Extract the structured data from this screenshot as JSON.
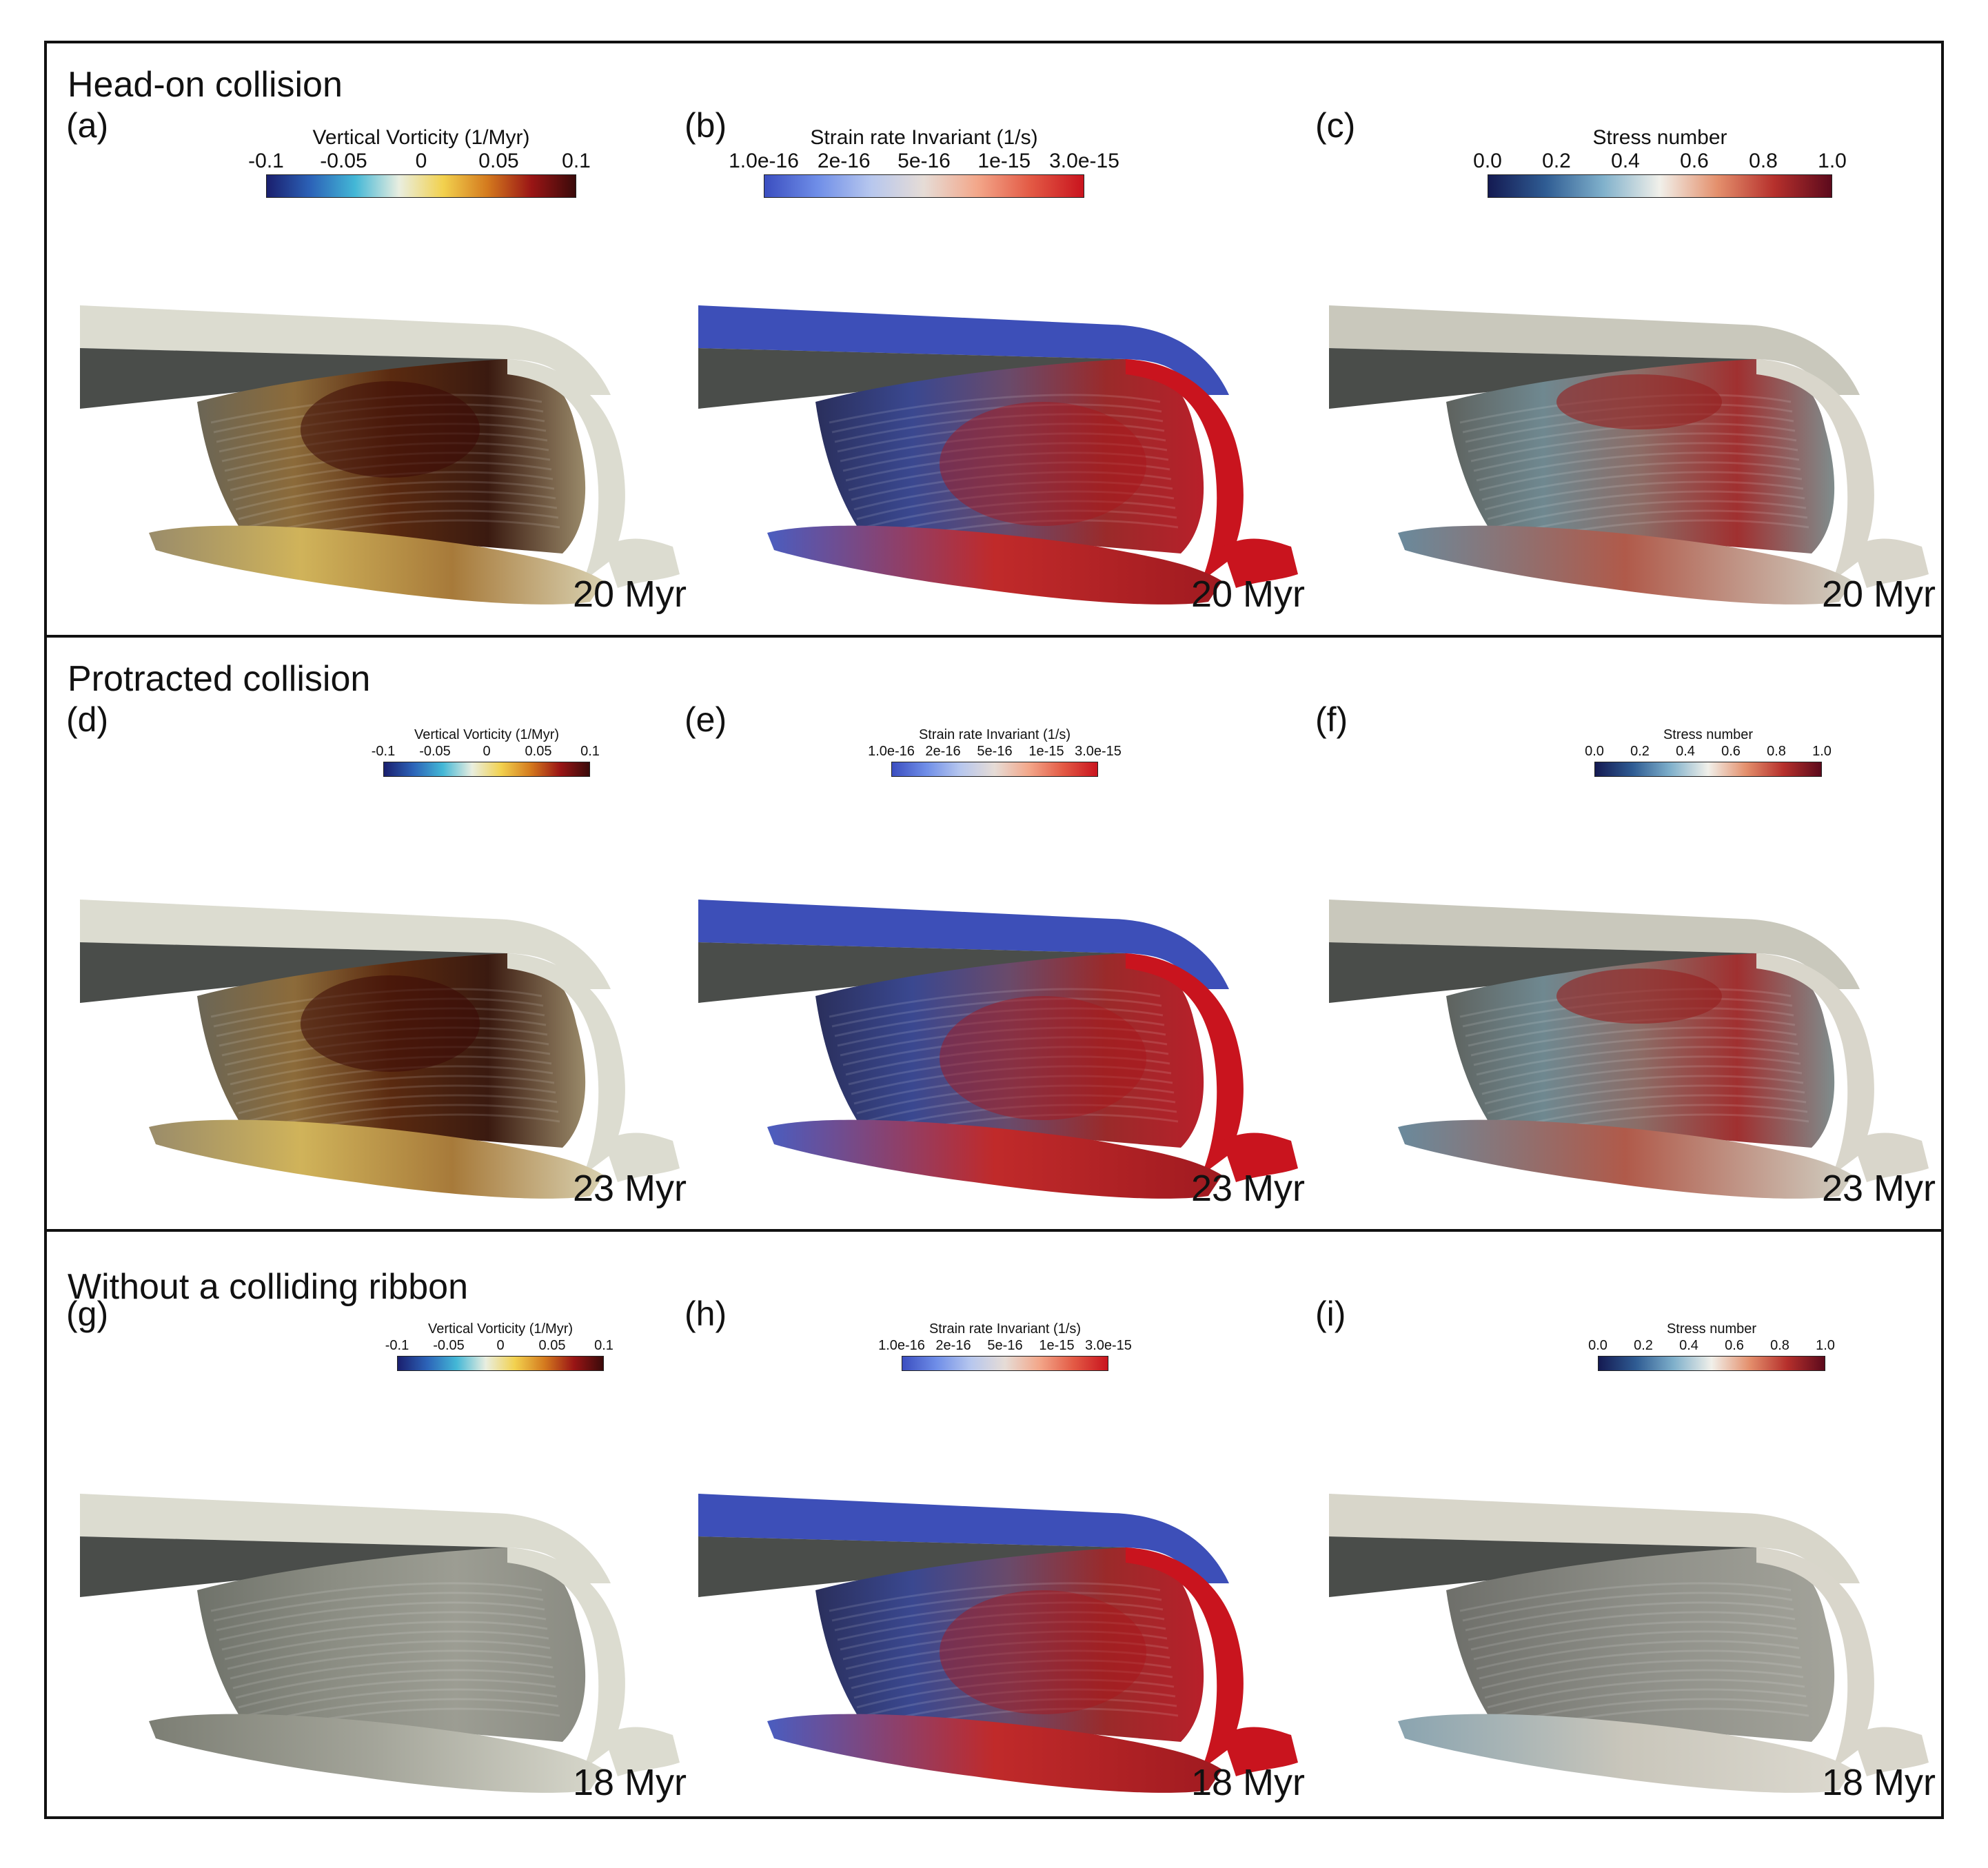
{
  "rows": [
    {
      "title": "Head-on collision",
      "panels": [
        {
          "label": "(a)",
          "time": "20 Myr",
          "cbar": {
            "title": "Vertical Vorticity (1/Myr)",
            "ticks": [
              "-0.1",
              "-0.05",
              "0",
              "0.05",
              "0.1"
            ],
            "scheme": "vorticity"
          },
          "field": "vorticity"
        },
        {
          "label": "(b)",
          "time": "20 Myr",
          "cbar": {
            "title": "Strain rate Invariant (1/s)",
            "ticks": [
              "1.0e-16",
              "2e-16",
              "5e-16",
              "1e-15",
              "3.0e-15"
            ],
            "scheme": "strain"
          },
          "field": "strain"
        },
        {
          "label": "(c)",
          "time": "20 Myr",
          "cbar": {
            "title": "Stress number",
            "ticks": [
              "0.0",
              "0.2",
              "0.4",
              "0.6",
              "0.8",
              "1.0"
            ],
            "scheme": "stress"
          },
          "field": "stress"
        }
      ]
    },
    {
      "title": "Protracted collision",
      "panels": [
        {
          "label": "(d)",
          "time": "23 Myr",
          "cbar": {
            "title": "Vertical Vorticity (1/Myr)",
            "ticks": [
              "-0.1",
              "-0.05",
              "0",
              "0.05",
              "0.1"
            ],
            "scheme": "vorticity"
          },
          "field": "vorticity"
        },
        {
          "label": "(e)",
          "time": "23 Myr",
          "cbar": {
            "title": "Strain rate Invariant (1/s)",
            "ticks": [
              "1.0e-16",
              "2e-16",
              "5e-16",
              "1e-15",
              "3.0e-15"
            ],
            "scheme": "strain"
          },
          "field": "strain"
        },
        {
          "label": "(f)",
          "time": "23 Myr",
          "cbar": {
            "title": "Stress number",
            "ticks": [
              "0.0",
              "0.2",
              "0.4",
              "0.6",
              "0.8",
              "1.0"
            ],
            "scheme": "stress"
          },
          "field": "stress"
        }
      ]
    },
    {
      "title": "Without a colliding ribbon",
      "panels": [
        {
          "label": "(g)",
          "time": "18 Myr",
          "cbar": {
            "title": "Vertical Vorticity (1/Myr)",
            "ticks": [
              "-0.1",
              "-0.05",
              "0",
              "0.05",
              "0.1"
            ],
            "scheme": "vorticity"
          },
          "field": "vorticity-weak"
        },
        {
          "label": "(h)",
          "time": "18 Myr",
          "cbar": {
            "title": "Strain rate Invariant (1/s)",
            "ticks": [
              "1.0e-16",
              "2e-16",
              "5e-16",
              "1e-15",
              "3.0e-15"
            ],
            "scheme": "strain"
          },
          "field": "strain"
        },
        {
          "label": "(i)",
          "time": "18 Myr",
          "cbar": {
            "title": "Stress number",
            "ticks": [
              "0.0",
              "0.2",
              "0.4",
              "0.6",
              "0.8",
              "1.0"
            ],
            "scheme": "stress"
          },
          "field": "stress-weak"
        }
      ]
    }
  ],
  "colors": {
    "vorticity": [
      "#1a1f6e",
      "#2c63b8",
      "#43b7d6",
      "#e9eee0",
      "#f2d14e",
      "#d47a1e",
      "#9a1515",
      "#3a0a0a"
    ],
    "strain": [
      "#3b4ec0",
      "#6f8ee8",
      "#b7c7ee",
      "#e6dcd6",
      "#f3a78a",
      "#e35a45",
      "#c9141e"
    ],
    "stress": [
      "#141a52",
      "#2f5c93",
      "#7fb0cb",
      "#f1f0ea",
      "#e4906d",
      "#b6302c",
      "#5c0a1c"
    ],
    "slab_light": "#dcdcd0",
    "slab_dark": "#4a4d4a"
  }
}
